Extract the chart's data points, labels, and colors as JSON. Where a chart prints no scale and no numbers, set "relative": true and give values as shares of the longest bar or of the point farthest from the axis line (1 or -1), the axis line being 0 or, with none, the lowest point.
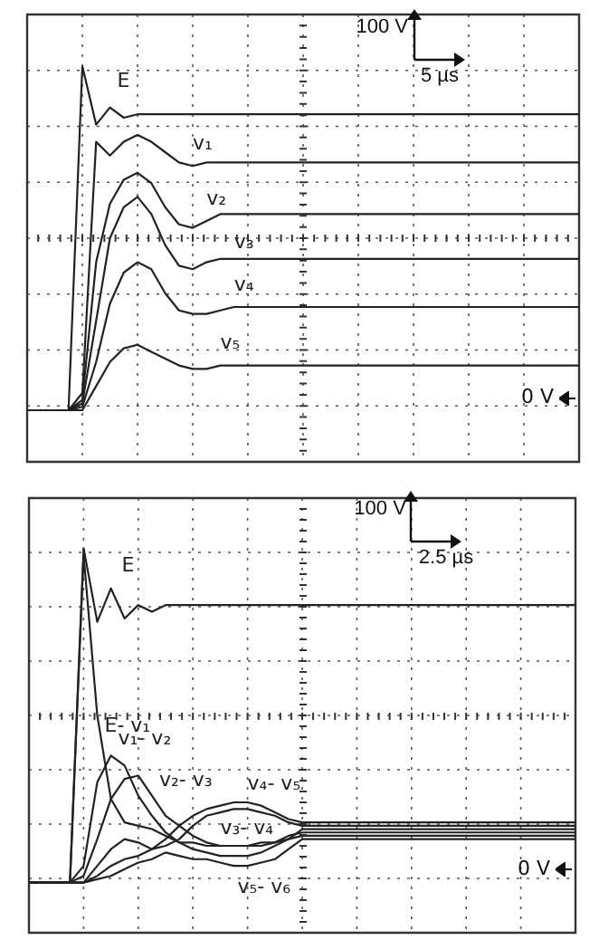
{
  "chart_data": [
    {
      "type": "line",
      "relative": true,
      "grid": true,
      "categories": [
        null,
        null,
        null,
        null,
        null,
        null,
        null,
        null,
        null,
        null,
        null,
        null,
        null,
        null,
        null,
        null,
        null,
        null,
        null,
        null,
        null,
        null,
        null,
        null,
        null,
        null,
        null,
        null,
        null,
        null,
        null,
        null,
        null,
        null,
        null,
        null,
        null,
        null,
        null,
        null,
        null
      ],
      "series": [
        {
          "name": "E",
          "color": "#222222",
          "values": [
            0,
            0,
            0,
            0,
            1,
            0.83,
            0.88,
            0.85,
            0.86,
            0.86,
            0.86,
            0.86,
            0.86,
            0.86,
            0.86,
            0.86,
            0.86,
            0.86,
            0.86,
            0.86,
            0.86,
            0.86,
            0.86,
            0.86,
            0.86,
            0.86,
            0.86,
            0.86,
            0.86,
            0.86,
            0.86,
            0.86,
            0.86,
            0.86,
            0.86,
            0.86,
            0.86,
            0.86,
            0.86,
            0.86,
            0.86
          ]
        },
        {
          "name": "v₁",
          "color": "#222222",
          "values": [
            0,
            0,
            0,
            0,
            0.05,
            0.78,
            0.74,
            0.78,
            0.8,
            0.78,
            0.75,
            0.72,
            0.71,
            0.72,
            0.72,
            0.72,
            0.72,
            0.72,
            0.72,
            0.72,
            0.72,
            0.72,
            0.72,
            0.72,
            0.72,
            0.72,
            0.72,
            0.72,
            0.72,
            0.72,
            0.72,
            0.72,
            0.72,
            0.72,
            0.72,
            0.72,
            0.72,
            0.72,
            0.72,
            0.72,
            0.72
          ]
        },
        {
          "name": "v₂",
          "color": "#222222",
          "values": [
            0,
            0,
            0,
            0,
            0.03,
            0.43,
            0.6,
            0.67,
            0.69,
            0.66,
            0.59,
            0.54,
            0.53,
            0.55,
            0.57,
            0.57,
            0.57,
            0.57,
            0.57,
            0.57,
            0.57,
            0.57,
            0.57,
            0.57,
            0.57,
            0.57,
            0.57,
            0.57,
            0.57,
            0.57,
            0.57,
            0.57,
            0.57,
            0.57,
            0.57,
            0.57,
            0.57,
            0.57,
            0.57,
            0.57,
            0.57
          ]
        },
        {
          "name": "v₃",
          "color": "#222222",
          "values": [
            0,
            0,
            0,
            0,
            0.02,
            0.26,
            0.5,
            0.59,
            0.62,
            0.57,
            0.48,
            0.42,
            0.41,
            0.43,
            0.44,
            0.44,
            0.44,
            0.44,
            0.44,
            0.44,
            0.44,
            0.44,
            0.44,
            0.44,
            0.44,
            0.44,
            0.44,
            0.44,
            0.44,
            0.44,
            0.44,
            0.44,
            0.44,
            0.44,
            0.44,
            0.44,
            0.44,
            0.44,
            0.44,
            0.44,
            0.44
          ]
        },
        {
          "name": "v₄",
          "color": "#222222",
          "values": [
            0,
            0,
            0,
            0,
            0.01,
            0.14,
            0.31,
            0.4,
            0.43,
            0.41,
            0.34,
            0.29,
            0.28,
            0.28,
            0.29,
            0.3,
            0.3,
            0.3,
            0.3,
            0.3,
            0.3,
            0.3,
            0.3,
            0.3,
            0.3,
            0.3,
            0.3,
            0.3,
            0.3,
            0.3,
            0.3,
            0.3,
            0.3,
            0.3,
            0.3,
            0.3,
            0.3,
            0.3,
            0.3,
            0.3,
            0.3
          ]
        },
        {
          "name": "v₅",
          "color": "#222222",
          "values": [
            0,
            0,
            0,
            0,
            0,
            0.07,
            0.14,
            0.18,
            0.19,
            0.17,
            0.15,
            0.13,
            0.12,
            0.12,
            0.13,
            0.13,
            0.13,
            0.13,
            0.13,
            0.13,
            0.13,
            0.13,
            0.13,
            0.13,
            0.13,
            0.13,
            0.13,
            0.13,
            0.13,
            0.13,
            0.13,
            0.13,
            0.13,
            0.13,
            0.13,
            0.13,
            0.13,
            0.13,
            0.13,
            0.13,
            0.13
          ]
        }
      ],
      "annotations": [
        "100 V",
        "5 µs",
        "0 V"
      ]
    },
    {
      "type": "line",
      "relative": true,
      "grid": true,
      "categories": [
        null,
        null,
        null,
        null,
        null,
        null,
        null,
        null,
        null,
        null,
        null,
        null,
        null,
        null,
        null,
        null,
        null,
        null,
        null,
        null,
        null,
        null,
        null,
        null,
        null,
        null,
        null,
        null,
        null,
        null,
        null,
        null,
        null,
        null,
        null,
        null,
        null,
        null,
        null,
        null,
        null
      ],
      "series": [
        {
          "name": "E",
          "color": "#222222",
          "values": [
            0,
            0,
            0,
            0,
            1,
            0.78,
            0.88,
            0.79,
            0.83,
            0.81,
            0.83,
            0.83,
            0.83,
            0.83,
            0.83,
            0.83,
            0.83,
            0.83,
            0.83,
            0.83,
            0.83,
            0.83,
            0.83,
            0.83,
            0.83,
            0.83,
            0.83,
            0.83,
            0.83,
            0.83,
            0.83,
            0.83,
            0.83,
            0.83,
            0.83,
            0.83,
            0.83,
            0.83,
            0.83,
            0.83,
            0.83
          ]
        },
        {
          "name": "E- v₁",
          "color": "#222222",
          "values": [
            0,
            0,
            0,
            0,
            0.98,
            0.5,
            0.25,
            0.18,
            0.17,
            0.16,
            0.14,
            0.12,
            0.12,
            0.11,
            0.11,
            0.11,
            0.11,
            0.12,
            0.12,
            0.14,
            0.15,
            0.15,
            0.15,
            0.15,
            0.15,
            0.15,
            0.15,
            0.15,
            0.15,
            0.15,
            0.15,
            0.15,
            0.15,
            0.15,
            0.15,
            0.15,
            0.15,
            0.15,
            0.15,
            0.15,
            0.15
          ]
        },
        {
          "name": "v₁- v₂",
          "color": "#222222",
          "values": [
            0,
            0,
            0,
            0,
            0.05,
            0.3,
            0.38,
            0.35,
            0.26,
            0.2,
            0.15,
            0.12,
            0.1,
            0.09,
            0.08,
            0.08,
            0.08,
            0.09,
            0.11,
            0.13,
            0.14,
            0.14,
            0.14,
            0.14,
            0.14,
            0.14,
            0.14,
            0.14,
            0.14,
            0.14,
            0.14,
            0.14,
            0.14,
            0.14,
            0.14,
            0.14,
            0.14,
            0.14,
            0.14,
            0.14,
            0.14
          ]
        },
        {
          "name": "v₂- v₃",
          "color": "#222222",
          "values": [
            0,
            0,
            0,
            0,
            0.02,
            0.13,
            0.25,
            0.31,
            0.32,
            0.26,
            0.2,
            0.17,
            0.14,
            0.12,
            0.11,
            0.11,
            0.11,
            0.11,
            0.12,
            0.13,
            0.16,
            0.16,
            0.16,
            0.16,
            0.16,
            0.16,
            0.16,
            0.16,
            0.16,
            0.16,
            0.16,
            0.16,
            0.16,
            0.16,
            0.16,
            0.16,
            0.16,
            0.16,
            0.16,
            0.16,
            0.16
          ]
        },
        {
          "name": "v₃- v₄",
          "color": "#222222",
          "values": [
            0,
            0,
            0,
            0,
            0,
            0.05,
            0.1,
            0.13,
            0.12,
            0.1,
            0.11,
            0.13,
            0.17,
            0.2,
            0.21,
            0.22,
            0.22,
            0.21,
            0.2,
            0.18,
            0.17,
            0.17,
            0.17,
            0.17,
            0.17,
            0.17,
            0.17,
            0.17,
            0.17,
            0.17,
            0.17,
            0.17,
            0.17,
            0.17,
            0.17,
            0.17,
            0.17,
            0.17,
            0.17,
            0.17,
            0.17
          ]
        },
        {
          "name": "v₄- v₅",
          "color": "#222222",
          "values": [
            0,
            0,
            0,
            0,
            0,
            0.02,
            0.05,
            0.07,
            0.08,
            0.1,
            0.13,
            0.17,
            0.2,
            0.22,
            0.23,
            0.24,
            0.24,
            0.23,
            0.21,
            0.19,
            0.18,
            0.18,
            0.18,
            0.18,
            0.18,
            0.18,
            0.18,
            0.18,
            0.18,
            0.18,
            0.18,
            0.18,
            0.18,
            0.18,
            0.18,
            0.18,
            0.18,
            0.18,
            0.18,
            0.18,
            0.18
          ]
        },
        {
          "name": "v₅- v₆",
          "color": "#222222",
          "values": [
            0,
            0,
            0,
            0,
            0,
            0.01,
            0.02,
            0.04,
            0.06,
            0.07,
            0.09,
            0.08,
            0.07,
            0.07,
            0.06,
            0.05,
            0.05,
            0.06,
            0.07,
            0.1,
            0.13,
            0.13,
            0.13,
            0.13,
            0.13,
            0.13,
            0.13,
            0.13,
            0.13,
            0.13,
            0.13,
            0.13,
            0.13,
            0.13,
            0.13,
            0.13,
            0.13,
            0.13,
            0.13,
            0.13,
            0.13
          ]
        }
      ],
      "annotations": [
        "100 V",
        "2.5 µs",
        "0 V"
      ]
    }
  ]
}
